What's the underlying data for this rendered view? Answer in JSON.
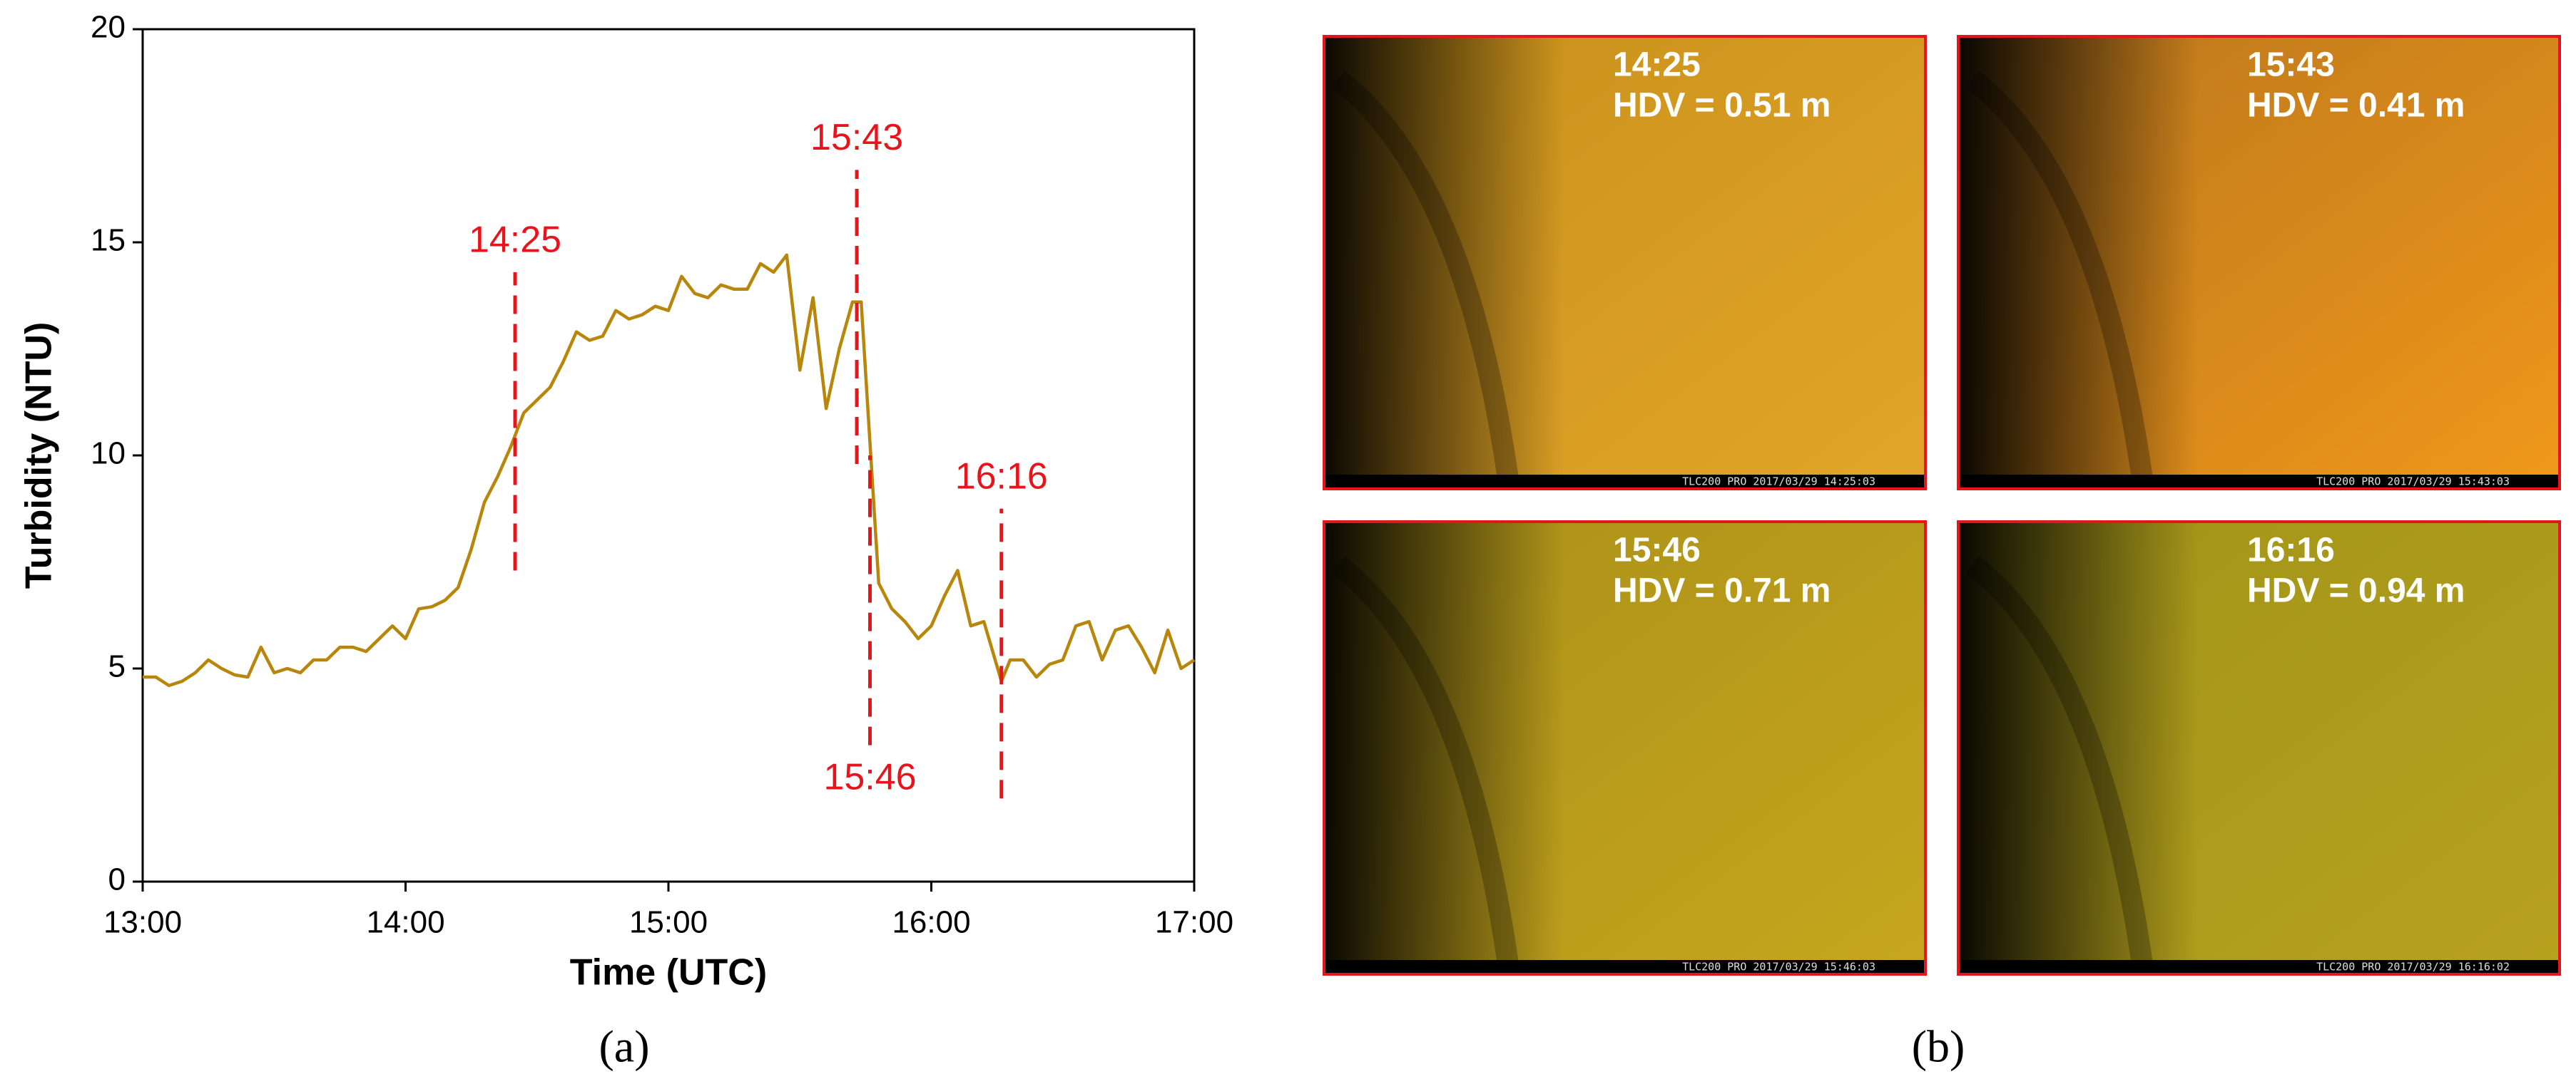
{
  "chart_data": {
    "type": "line",
    "x_label": "Time (UTC)",
    "y_label": "Turbidity (NTU)",
    "color": "#b8860b",
    "x": [
      "13:00",
      "13:03",
      "13:06",
      "13:09",
      "13:12",
      "13:15",
      "13:18",
      "13:21",
      "13:24",
      "13:27",
      "13:30",
      "13:33",
      "13:36",
      "13:39",
      "13:42",
      "13:45",
      "13:48",
      "13:51",
      "13:54",
      "13:57",
      "14:00",
      "14:03",
      "14:06",
      "14:09",
      "14:12",
      "14:15",
      "14:18",
      "14:21",
      "14:24",
      "14:27",
      "14:30",
      "14:33",
      "14:36",
      "14:39",
      "14:42",
      "14:45",
      "14:48",
      "14:51",
      "14:54",
      "14:57",
      "15:00",
      "15:03",
      "15:06",
      "15:09",
      "15:12",
      "15:15",
      "15:18",
      "15:21",
      "15:24",
      "15:27",
      "15:30",
      "15:33",
      "15:36",
      "15:39",
      "15:42",
      "15:44",
      "15:48",
      "15:51",
      "15:54",
      "15:57",
      "16:00",
      "16:03",
      "16:06",
      "16:09",
      "16:12",
      "16:16",
      "16:18",
      "16:21",
      "16:24",
      "16:27",
      "16:30",
      "16:33",
      "16:36",
      "16:39",
      "16:42",
      "16:45",
      "16:48",
      "16:51",
      "16:54",
      "16:57",
      "17:00"
    ],
    "values": [
      4.8,
      4.8,
      4.6,
      4.7,
      4.9,
      5.2,
      5.0,
      4.85,
      4.8,
      5.5,
      4.9,
      5.0,
      4.9,
      5.2,
      5.2,
      5.5,
      5.5,
      5.4,
      5.7,
      6.0,
      5.7,
      6.4,
      6.45,
      6.6,
      6.9,
      7.8,
      8.9,
      9.5,
      10.2,
      11.0,
      11.3,
      11.6,
      12.2,
      12.9,
      12.7,
      12.8,
      13.4,
      13.2,
      13.3,
      13.5,
      13.4,
      14.2,
      13.8,
      13.7,
      14.0,
      13.9,
      13.9,
      14.5,
      14.3,
      14.7,
      12.0,
      13.7,
      11.1,
      12.5,
      13.6,
      13.6,
      7.0,
      6.4,
      6.1,
      5.7,
      6.0,
      6.7,
      7.3,
      6.0,
      6.1,
      4.7,
      5.2,
      5.2,
      4.8,
      5.1,
      5.2,
      6.0,
      6.1,
      5.2,
      5.9,
      6.0,
      5.5,
      4.9,
      5.9,
      5.0,
      5.2
    ],
    "xlim": [
      "13:00",
      "17:00"
    ],
    "xticks": [
      "13:00",
      "14:00",
      "15:00",
      "16:00",
      "17:00"
    ],
    "ylim": [
      0,
      20
    ],
    "yticks": [
      0,
      5,
      10,
      15,
      20
    ],
    "annotations": [
      {
        "text": "14:25",
        "x": "14:25",
        "y": [
          7.3,
          14.3
        ],
        "label_pos": "top"
      },
      {
        "text": "15:43",
        "x": "15:43",
        "y": [
          9.8,
          16.7
        ],
        "label_pos": "top"
      },
      {
        "text": "15:46",
        "x": "15:46",
        "y": [
          3.2,
          10.0
        ],
        "label_pos": "bottom"
      },
      {
        "text": "16:16",
        "x": "16:16",
        "y": [
          1.95,
          8.75
        ],
        "label_pos": "top"
      }
    ],
    "annotation_color": "#e8141b"
  },
  "panel_labels": [
    "(a)",
    "(b)"
  ],
  "photos": [
    {
      "time": "14:25",
      "hdv": "HDV = 0.51 m",
      "footer": "TLC200 PRO 2017/03/29 14:25:03"
    },
    {
      "time": "15:43",
      "hdv": "HDV = 0.41 m",
      "footer": "TLC200 PRO 2017/03/29 15:43:03"
    },
    {
      "time": "15:46",
      "hdv": "HDV = 0.71 m",
      "footer": "TLC200 PRO 2017/03/29 15:46:03"
    },
    {
      "time": "16:16",
      "hdv": "HDV = 0.94 m",
      "footer": "TLC200 PRO 2017/03/29 16:16:02"
    }
  ]
}
